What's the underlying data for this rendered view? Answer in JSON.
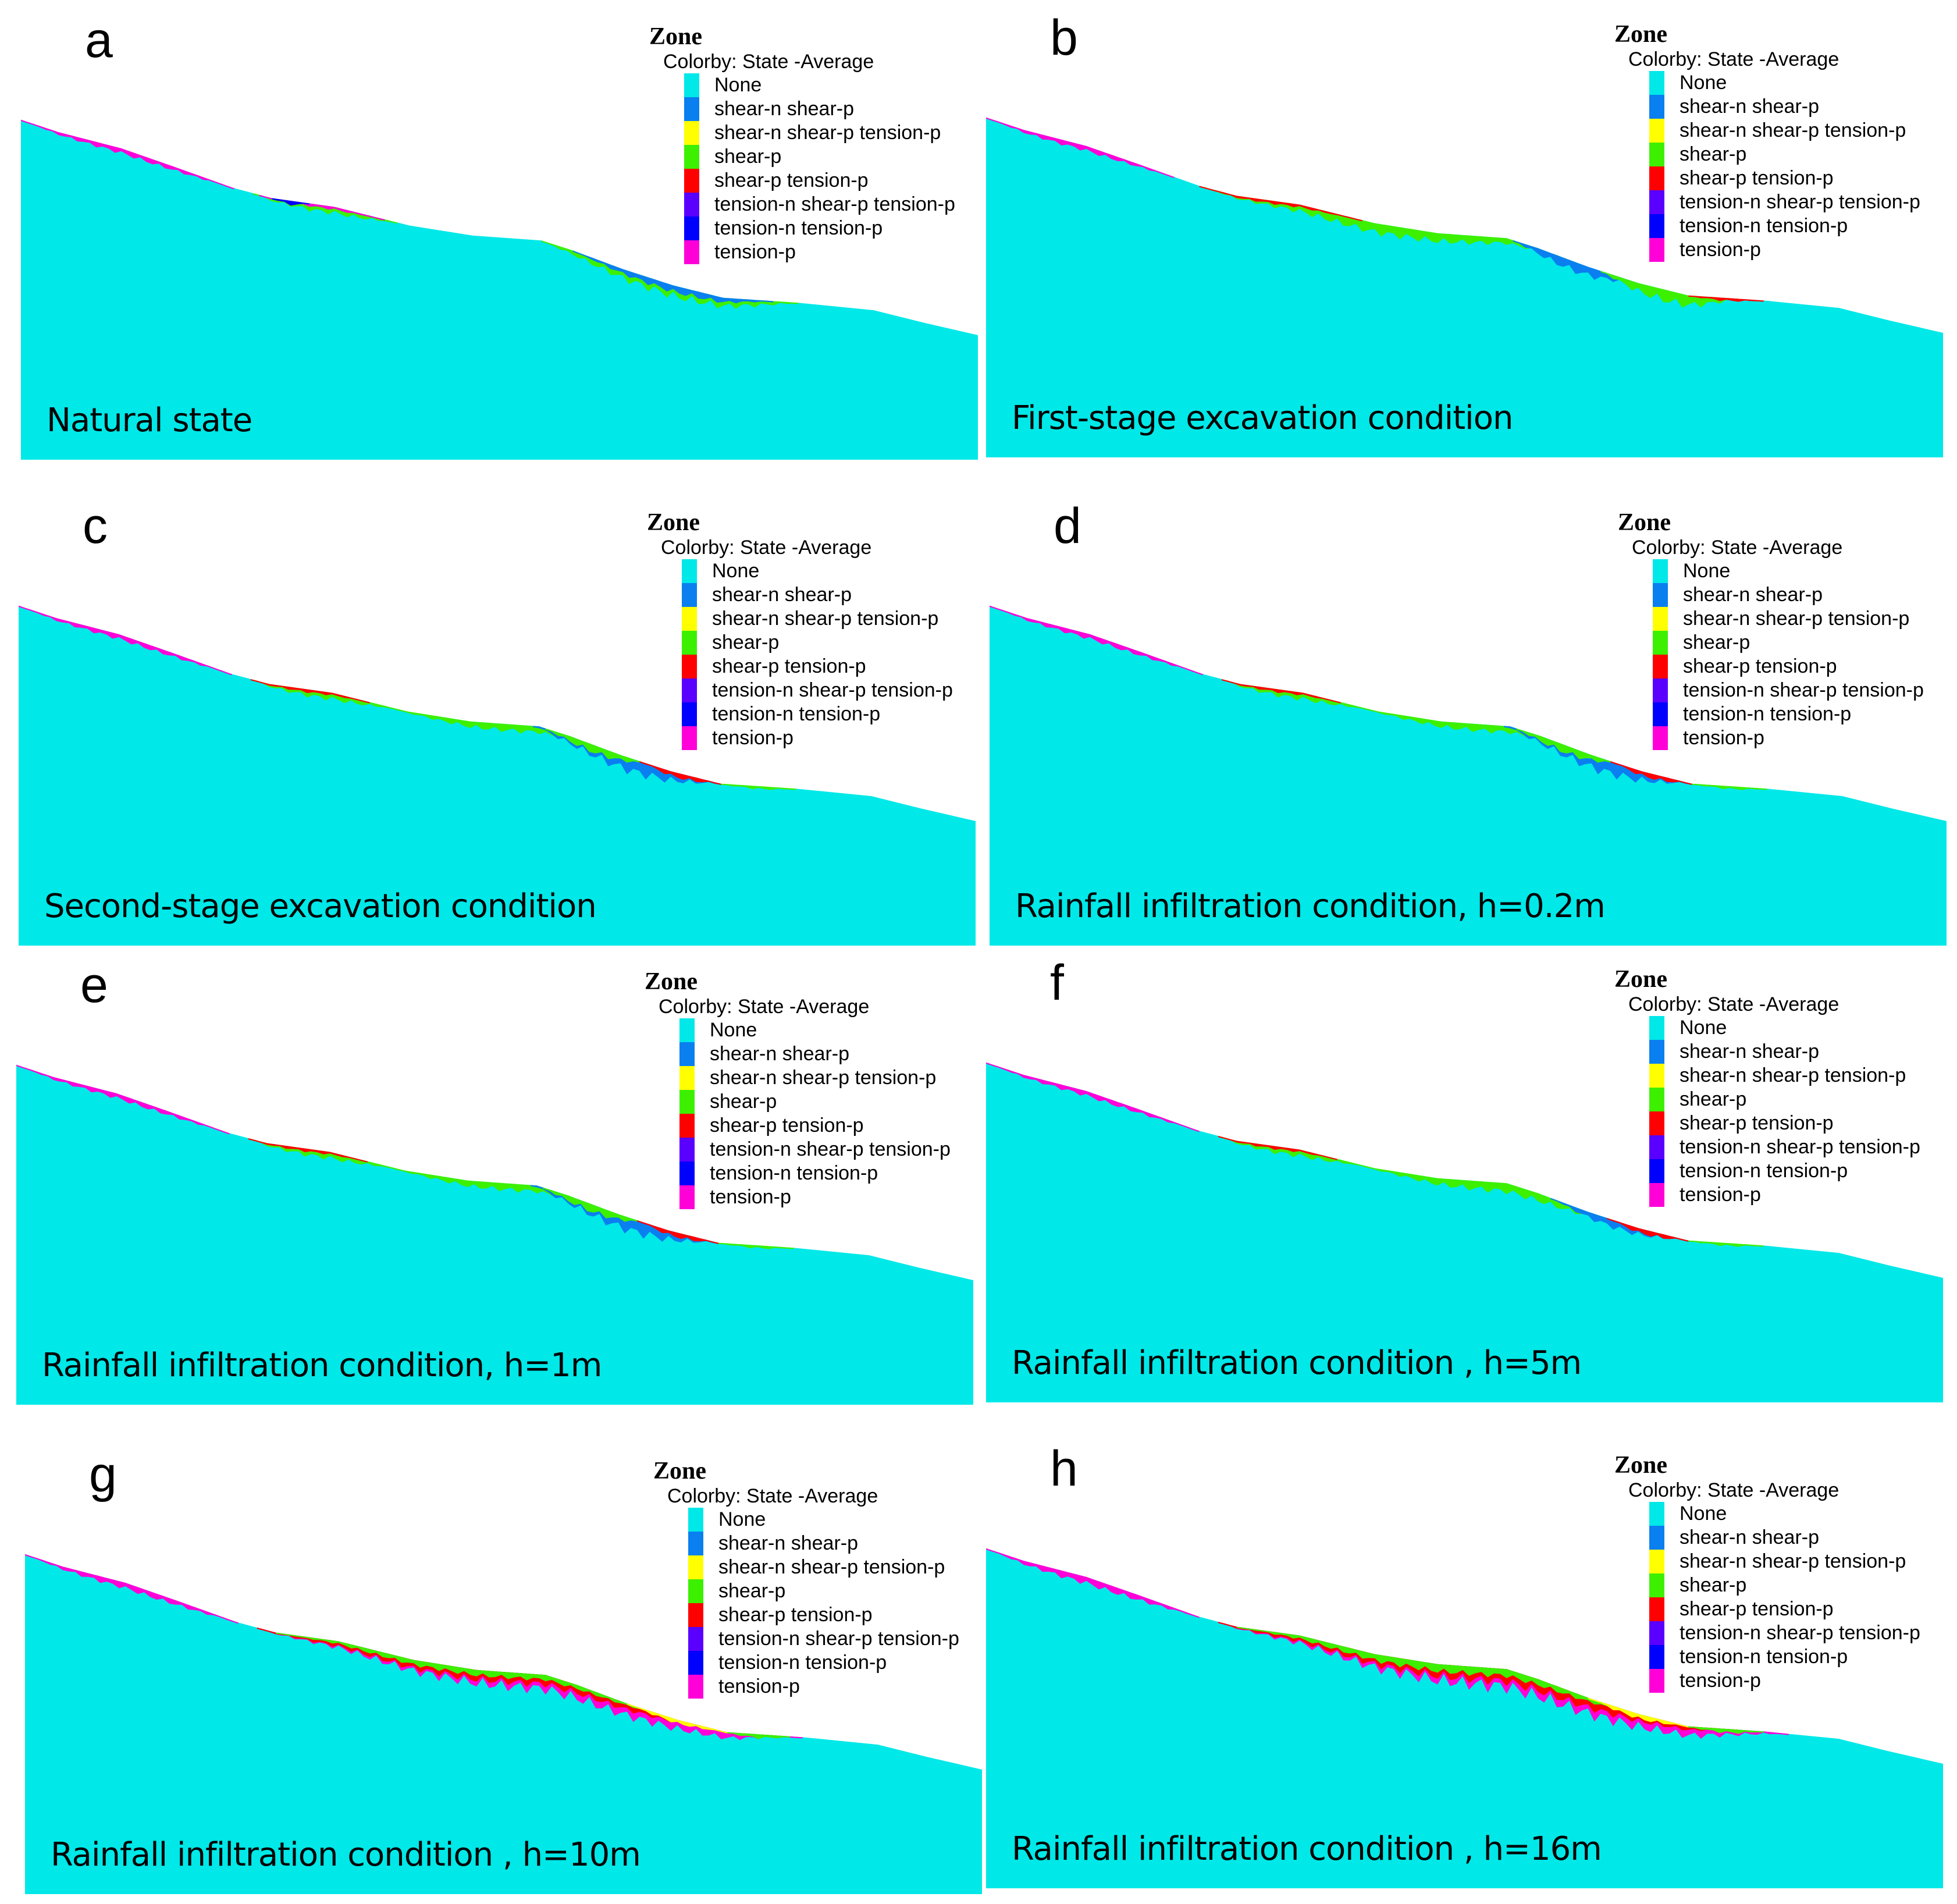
{
  "legend": {
    "title": "Zone",
    "colorby": "Colorby: State  -Average",
    "items": [
      {
        "label": "None",
        "color": "#00e8e8"
      },
      {
        "label": "shear-n shear-p",
        "color": "#0a7ff0"
      },
      {
        "label": "shear-n shear-p tension-p",
        "color": "#ffff00"
      },
      {
        "label": "shear-p",
        "color": "#3cf000"
      },
      {
        "label": "shear-p tension-p",
        "color": "#ff0000"
      },
      {
        "label": "tension-n shear-p tension-p",
        "color": "#5a00ff"
      },
      {
        "label": "tension-n tension-p",
        "color": "#0000ff"
      },
      {
        "label": "tension-p",
        "color": "#ff00d8"
      }
    ]
  },
  "panels": [
    {
      "letter": "a",
      "caption": "Natural state"
    },
    {
      "letter": "b",
      "caption": "First-stage excavation condition"
    },
    {
      "letter": "c",
      "caption": "Second-stage excavation condition"
    },
    {
      "letter": "d",
      "caption": "Rainfall infiltration condition, h=0.2m"
    },
    {
      "letter": "e",
      "caption": "Rainfall infiltration condition, h=1m"
    },
    {
      "letter": "f",
      "caption": "Rainfall infiltration condition , h=5m"
    },
    {
      "letter": "g",
      "caption": "Rainfall infiltration condition , h=10m"
    },
    {
      "letter": "h",
      "caption": "Rainfall infiltration condition , h=16m"
    }
  ]
}
